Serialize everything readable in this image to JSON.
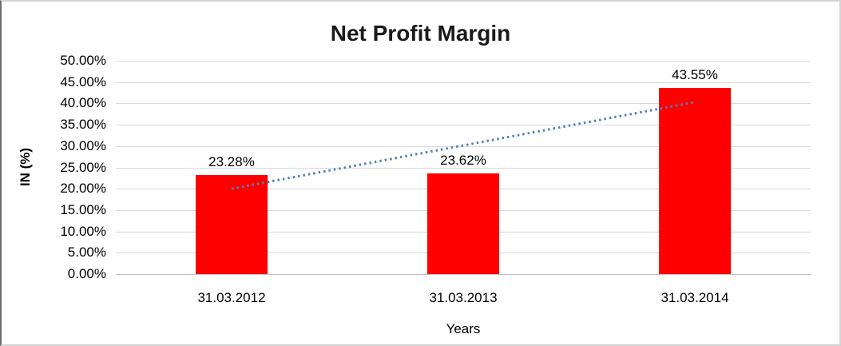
{
  "chart_data": {
    "type": "bar",
    "title": "Net Profit Margin",
    "categories": [
      "31.03.2012",
      "31.03.2013",
      "31.03.2014"
    ],
    "values": [
      23.28,
      23.62,
      43.55
    ],
    "value_labels": [
      "23.28%",
      "23.62%",
      "43.55%"
    ],
    "xlabel": "Years",
    "ylabel": "IN (%)",
    "ylim": [
      0,
      50
    ],
    "ytick_step": 5,
    "ytick_labels": [
      "0.00%",
      "5.00%",
      "10.00%",
      "15.00%",
      "20.00%",
      "25.00%",
      "30.00%",
      "35.00%",
      "40.00%",
      "45.00%",
      "50.00%"
    ],
    "grid": true,
    "legend": "none",
    "bar_color": "#ff0000",
    "gridline_color": "#d9d9d9",
    "trendline": {
      "type": "linear",
      "style": "dotted",
      "color": "#4e81bd",
      "from_category_index": 0,
      "to_category_index": 2,
      "start_value_pct": 20.0,
      "end_value_pct": 40.3
    }
  }
}
